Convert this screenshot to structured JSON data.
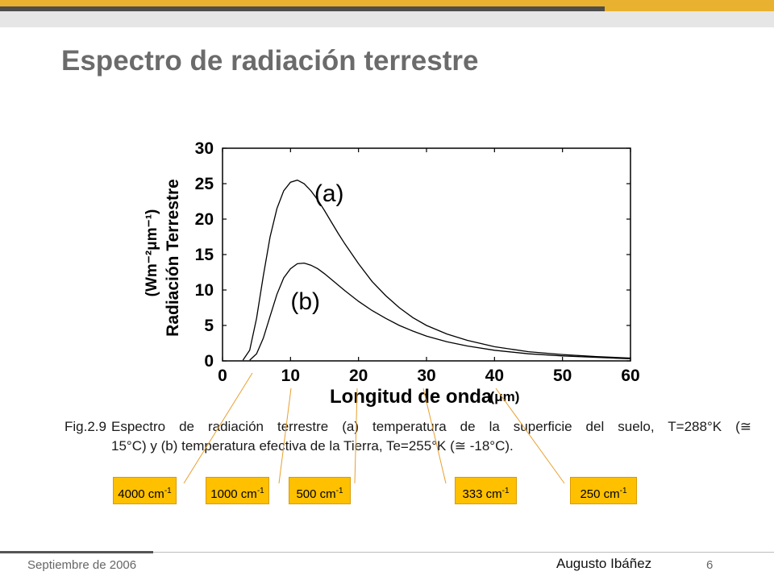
{
  "slide": {
    "title": "Espectro de radiación terrestre",
    "footer_date": "Septiembre de 2006",
    "footer_author": "Augusto Ibáñez",
    "page_number": "6"
  },
  "caption": {
    "label": "Fig.2.9",
    "line1": "Espectro de radiación terrestre (a) temperatura de la superficie del suelo, T=288°K (≅",
    "line2": "15°C) y (b) temperatura efectiva de la Tierra, Te=255°K (≅ -18°C)."
  },
  "wavenumber_labels": [
    {
      "value": "4000 cm",
      "exp": "-1"
    },
    {
      "value": "1000 cm",
      "exp": "-1"
    },
    {
      "value": "500 cm",
      "exp": "-1"
    },
    {
      "value": "333 cm",
      "exp": "-1"
    },
    {
      "value": "250 cm",
      "exp": "-1"
    }
  ],
  "colors": {
    "accent": "#e8b230",
    "box_fill": "#ffc000",
    "leader_line": "#e8a030",
    "title": "#6b6b6b"
  },
  "chart_data": {
    "type": "line",
    "ylabel_line1": "Radiación Terrestre",
    "ylabel_line2": "(Wm⁻²μm⁻¹)",
    "xlabel": "Longitud  de  onda",
    "xlabel_unit": "(μm)",
    "xlim": [
      0,
      60
    ],
    "ylim": [
      0,
      30
    ],
    "xticks": [
      0,
      10,
      20,
      30,
      40,
      50,
      60
    ],
    "yticks": [
      0,
      5,
      10,
      15,
      20,
      25,
      30
    ],
    "grid": false,
    "series": [
      {
        "name": "(a)",
        "x": [
          3,
          4,
          5,
          6,
          7,
          8,
          9,
          10,
          11,
          12,
          13,
          14,
          15,
          16,
          17,
          18,
          20,
          22,
          24,
          26,
          28,
          30,
          33,
          36,
          40,
          45,
          50,
          55,
          60
        ],
        "y": [
          0.1,
          1.5,
          6,
          12,
          17.5,
          21.5,
          24,
          25.2,
          25.5,
          25,
          24,
          22.7,
          21.2,
          19.6,
          18,
          16.5,
          13.7,
          11.2,
          9.2,
          7.5,
          6.1,
          5,
          3.8,
          2.9,
          2,
          1.3,
          0.9,
          0.6,
          0.4
        ]
      },
      {
        "name": "(b)",
        "x": [
          4,
          5,
          6,
          7,
          8,
          9,
          10,
          11,
          12,
          13,
          14,
          15,
          16,
          18,
          20,
          22,
          24,
          26,
          28,
          30,
          33,
          36,
          40,
          45,
          50,
          55,
          60
        ],
        "y": [
          0.1,
          1,
          3.2,
          6.3,
          9.4,
          11.7,
          13,
          13.7,
          13.8,
          13.5,
          13,
          12.3,
          11.5,
          9.9,
          8.4,
          7.1,
          6,
          5,
          4.2,
          3.5,
          2.7,
          2.1,
          1.5,
          1,
          0.7,
          0.5,
          0.3
        ]
      }
    ]
  }
}
